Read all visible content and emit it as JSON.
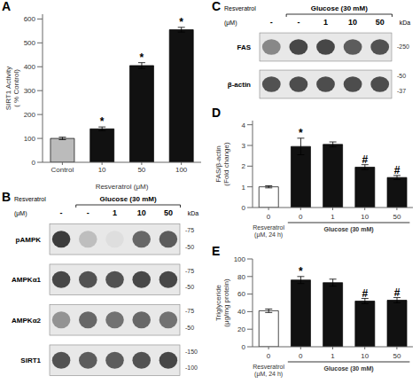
{
  "chart_data": [
    {
      "type": "bar",
      "title": "A",
      "categories": [
        "Control",
        "10",
        "50",
        "100"
      ],
      "values": [
        100,
        140,
        405,
        555
      ],
      "errors": [
        5,
        8,
        12,
        10
      ],
      "colors": [
        "#bbbbbb",
        "#111111",
        "#111111",
        "#111111"
      ],
      "ylabel": "SIRT1 Activity\n( % Control)",
      "xlabel": "Resveratrol (μM)",
      "ylim": [
        0,
        620
      ],
      "yticks": [
        0,
        100,
        200,
        300,
        400,
        500,
        600
      ],
      "annotations": [
        null,
        "*",
        "*",
        "*"
      ]
    },
    {
      "type": "blot",
      "title": "B",
      "xlabel": "Resveratrol\n(μM)",
      "group_label": "Glucose (30 mM)",
      "categories": [
        "-",
        "-",
        "1",
        "10",
        "50"
      ],
      "y2label": "kDa",
      "series": [
        {
          "name": "pAMPK",
          "values": [
            0.9,
            0.3,
            0.15,
            0.7,
            0.75
          ],
          "labels": [
            "-75",
            "-50"
          ]
        },
        {
          "name": "AMPKα1",
          "values": [
            0.85,
            0.8,
            0.8,
            0.85,
            0.85
          ],
          "labels": [
            "-75",
            "-50"
          ]
        },
        {
          "name": "AMPKα2",
          "values": [
            0.5,
            0.7,
            0.65,
            0.7,
            0.65
          ],
          "labels": [
            "-75",
            "-50"
          ]
        },
        {
          "name": "SIRT1",
          "values": [
            0.8,
            0.75,
            0.75,
            0.8,
            0.85
          ],
          "labels": [
            "-150",
            "-100"
          ]
        }
      ]
    },
    {
      "type": "blot",
      "title": "C",
      "xlabel": "Resveratrol\n(μM)",
      "group_label": "Glucose (30 mM)",
      "categories": [
        "-",
        "-",
        "1",
        "10",
        "50"
      ],
      "y2label": "kDa",
      "series": [
        {
          "name": "FAS",
          "values": [
            0.55,
            0.85,
            0.85,
            0.75,
            0.8
          ],
          "labels": [
            "-250"
          ]
        },
        {
          "name": "β-actin",
          "values": [
            0.8,
            0.82,
            0.82,
            0.82,
            0.82
          ],
          "labels": [
            "-50",
            "-37"
          ]
        }
      ]
    },
    {
      "type": "bar",
      "title": "D",
      "categories": [
        "0",
        "0",
        "1",
        "10",
        "50"
      ],
      "values": [
        1.0,
        2.95,
        3.05,
        1.95,
        1.45
      ],
      "errors": [
        0.05,
        0.4,
        0.12,
        0.12,
        0.1
      ],
      "colors": [
        "#ffffff",
        "#111111",
        "#111111",
        "#111111",
        "#111111"
      ],
      "ylabel": "FAS/β-actin\n(Fold change)",
      "xlabel": "Resveratrol\n(μM, 24 h)",
      "group_label": "Glucose (30 mM)",
      "ylim": [
        0,
        4.2
      ],
      "yticks": [
        0,
        1,
        2,
        3,
        4
      ],
      "annotations": [
        null,
        "*",
        null,
        "#",
        "#"
      ]
    },
    {
      "type": "bar",
      "title": "E",
      "categories": [
        "0",
        "0",
        "1",
        "10",
        "50"
      ],
      "values": [
        41,
        76,
        73,
        52,
        53
      ],
      "errors": [
        2,
        4,
        4,
        3,
        3
      ],
      "colors": [
        "#ffffff",
        "#111111",
        "#111111",
        "#111111",
        "#111111"
      ],
      "ylabel": "Triglyceride\n(μg/mg protein)",
      "xlabel": "Resveratrol\n(μM, 24 h)",
      "group_label": "Glucose (30 mM)",
      "ylim": [
        0,
        100
      ],
      "yticks": [
        0,
        20,
        40,
        60,
        80,
        100
      ],
      "annotations": [
        null,
        "*",
        null,
        "#",
        "#"
      ]
    }
  ]
}
